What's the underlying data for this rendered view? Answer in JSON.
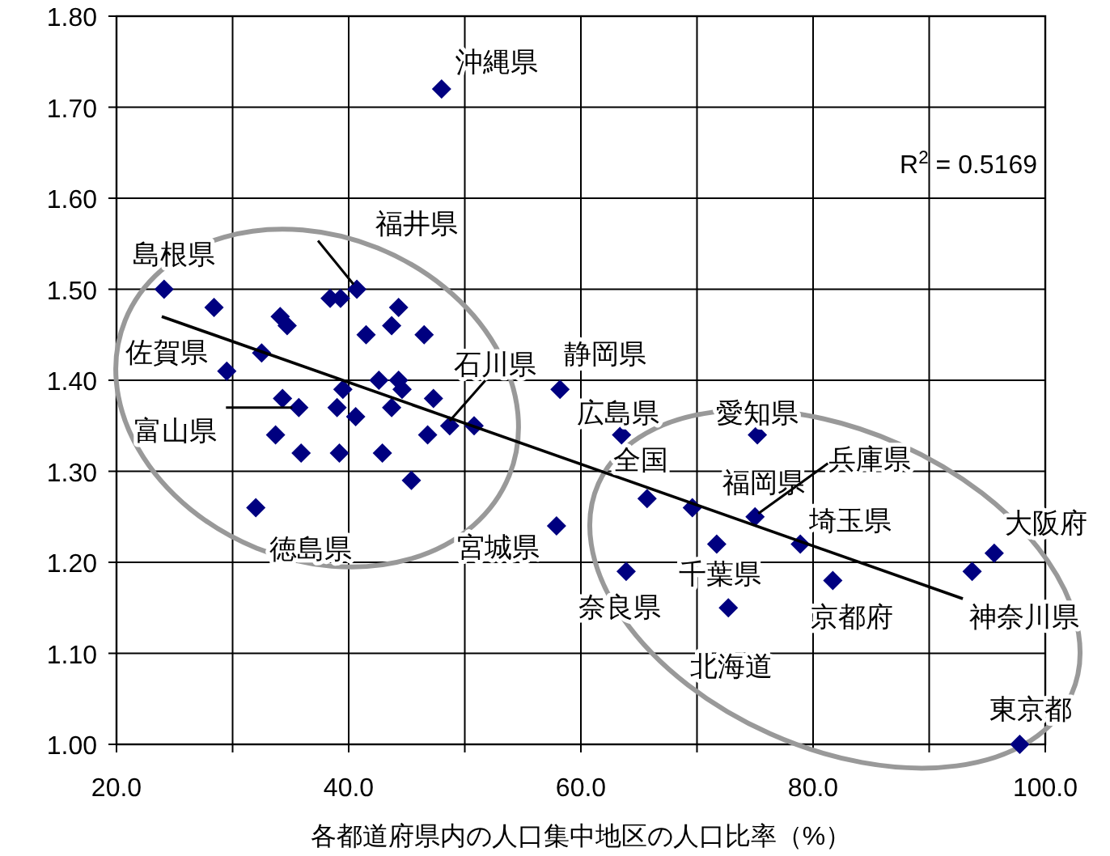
{
  "chart_data": {
    "type": "scatter",
    "xlabel": "各都道府県内の人口集中地区の人口比率（%）",
    "xlim": [
      20,
      100
    ],
    "ylim": [
      1.0,
      1.8
    ],
    "xticks": [
      {
        "value": 20,
        "label": "20.0"
      },
      {
        "value": 30,
        "label": null
      },
      {
        "value": 40,
        "label": "40.0"
      },
      {
        "value": 50,
        "label": null
      },
      {
        "value": 60,
        "label": "60.0"
      },
      {
        "value": 70,
        "label": null
      },
      {
        "value": 80,
        "label": "80.0"
      },
      {
        "value": 90,
        "label": null
      },
      {
        "value": 100,
        "label": "100.0"
      }
    ],
    "yticks": [
      {
        "value": 1.0,
        "label": "1.00"
      },
      {
        "value": 1.1,
        "label": "1.10"
      },
      {
        "value": 1.2,
        "label": "1.20"
      },
      {
        "value": 1.3,
        "label": "1.30"
      },
      {
        "value": 1.4,
        "label": "1.40"
      },
      {
        "value": 1.5,
        "label": "1.50"
      },
      {
        "value": 1.6,
        "label": "1.60"
      },
      {
        "value": 1.7,
        "label": "1.70"
      },
      {
        "value": 1.8,
        "label": "1.80"
      }
    ],
    "grid": true,
    "marker": "diamond",
    "series": [
      {
        "color": "#000080",
        "x": [
          24.1,
          28.4,
          34.1,
          34.7,
          38.4,
          39.3,
          40.7,
          44.3,
          43.7,
          41.5,
          46.5,
          32.5,
          29.5,
          42.6,
          44.3,
          44.6,
          39.5,
          47.3,
          34.3,
          35.7,
          39.0,
          43.7,
          40.6,
          48.7,
          50.8,
          46.8,
          33.7,
          35.9,
          39.2,
          42.9,
          45.4,
          32.0,
          58.2,
          57.9,
          63.5,
          75.2,
          65.7,
          69.6,
          75.0,
          71.7,
          78.9,
          63.9,
          81.7,
          72.7,
          93.7,
          95.6,
          97.8,
          48.0
        ],
        "values": [
          1.5,
          1.48,
          1.47,
          1.46,
          1.49,
          1.49,
          1.5,
          1.48,
          1.46,
          1.45,
          1.45,
          1.43,
          1.41,
          1.4,
          1.4,
          1.39,
          1.39,
          1.38,
          1.38,
          1.37,
          1.37,
          1.37,
          1.36,
          1.35,
          1.35,
          1.34,
          1.34,
          1.32,
          1.32,
          1.32,
          1.29,
          1.26,
          1.39,
          1.24,
          1.34,
          1.34,
          1.27,
          1.26,
          1.25,
          1.22,
          1.22,
          1.19,
          1.18,
          1.15,
          1.19,
          1.21,
          1.0,
          1.72
        ]
      },
      {
        "type": "line",
        "color": "#000000",
        "marker": "none",
        "x": [
          23.9,
          92.9
        ],
        "values": [
          1.47,
          1.16
        ]
      }
    ],
    "annotations": [
      {
        "text": "沖縄県",
        "x": 48.0,
        "y": 1.72
      },
      {
        "text": "福井県",
        "x": 40.7,
        "y": 1.5
      },
      {
        "text": "島根県",
        "x": 24.1,
        "y": 1.5
      },
      {
        "text": "佐賀県",
        "x": 29.5,
        "y": 1.41
      },
      {
        "text": "富山県",
        "x": 35.7,
        "y": 1.37
      },
      {
        "text": "石川県",
        "x": 48.7,
        "y": 1.35
      },
      {
        "text": "徳島県",
        "x": 32.0,
        "y": 1.26
      },
      {
        "text": "宮城県",
        "x": 57.9,
        "y": 1.24
      },
      {
        "text": "静岡県",
        "x": 58.2,
        "y": 1.39
      },
      {
        "text": "広島県",
        "x": 63.5,
        "y": 1.34
      },
      {
        "text": "愛知県",
        "x": 75.2,
        "y": 1.34
      },
      {
        "text": "全国",
        "x": 65.7,
        "y": 1.27
      },
      {
        "text": "福岡県",
        "x": 69.6,
        "y": 1.26
      },
      {
        "text": "兵庫県",
        "x": 75.0,
        "y": 1.25
      },
      {
        "text": "埼玉県",
        "x": 78.9,
        "y": 1.22
      },
      {
        "text": "千葉県",
        "x": 71.7,
        "y": 1.22
      },
      {
        "text": "奈良県",
        "x": 63.9,
        "y": 1.19
      },
      {
        "text": "北海道",
        "x": 72.7,
        "y": 1.15
      },
      {
        "text": "京都府",
        "x": 81.7,
        "y": 1.18
      },
      {
        "text": "大阪府",
        "x": 95.6,
        "y": 1.21
      },
      {
        "text": "神奈川県",
        "x": 93.7,
        "y": 1.19
      },
      {
        "text": "東京都",
        "x": 97.8,
        "y": 1.0
      },
      "R$^{2}$ = 0.5169"
    ]
  }
}
